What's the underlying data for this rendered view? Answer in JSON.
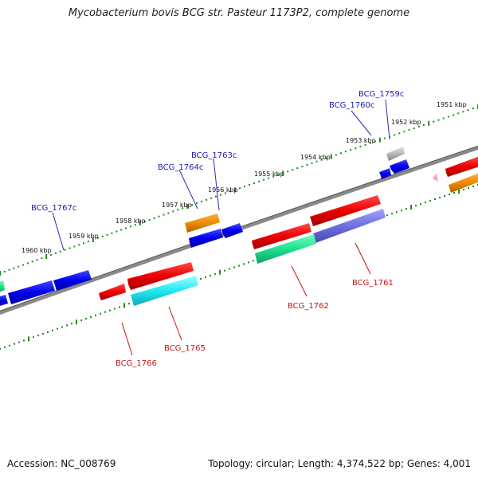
{
  "title": "Mycobacterium bovis BCG str. Pasteur 1173P2, complete genome",
  "footer": {
    "accession": "Accession: NC_008769",
    "summary": "Topology: circular; Length: 4,374,522 bp; Genes: 4,001"
  },
  "colors": {
    "backbone": "#808080",
    "tick": "#1e8a1e",
    "top_label": "#1a1ab0",
    "bottom_label": "#c81010"
  },
  "scale_labels": [
    "1951 kbp",
    "1952 kbp",
    "1953 kbp",
    "1954 kbp",
    "1955 kbp",
    "1956 kbp",
    "1957 kbp",
    "1958 kbp",
    "1959 kbp",
    "1960 kbp"
  ],
  "top_gene_labels": [
    "BCG_1759c",
    "BCG_1760c",
    "BCG_1763c",
    "BCG_1764c",
    "BCG_1767c"
  ],
  "bottom_gene_labels": [
    "BCG_1761",
    "BCG_1762",
    "BCG_1765",
    "BCG_1766"
  ]
}
